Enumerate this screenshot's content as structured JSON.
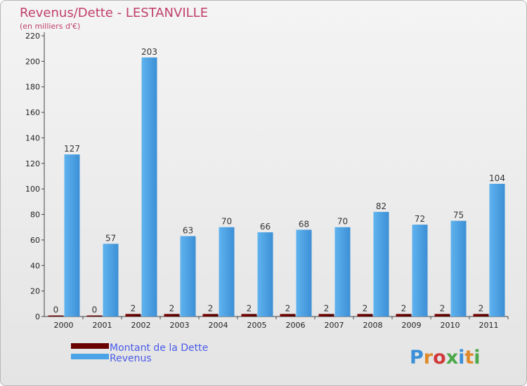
{
  "chart_data": {
    "type": "bar",
    "title": "Revenus/Dette - LESTANVILLE",
    "subtitle": "(en milliers d'€)",
    "categories": [
      "2000",
      "2001",
      "2002",
      "2003",
      "2004",
      "2005",
      "2006",
      "2007",
      "2008",
      "2009",
      "2010",
      "2011"
    ],
    "series": [
      {
        "name": "Montant de la Dette",
        "color": "#6b0000",
        "values": [
          0,
          0,
          2,
          2,
          2,
          2,
          2,
          2,
          2,
          2,
          2,
          2
        ]
      },
      {
        "name": "Revenus",
        "color": "#4aa3e6",
        "values": [
          127,
          57,
          203,
          63,
          70,
          66,
          68,
          70,
          82,
          72,
          75,
          104
        ]
      }
    ],
    "ylim": [
      0,
      220
    ],
    "yticks": [
      0,
      20,
      40,
      60,
      80,
      100,
      120,
      140,
      160,
      180,
      200,
      220
    ],
    "grid": false,
    "legend": "bottom-left"
  },
  "logo": {
    "text": "Proxiti"
  }
}
